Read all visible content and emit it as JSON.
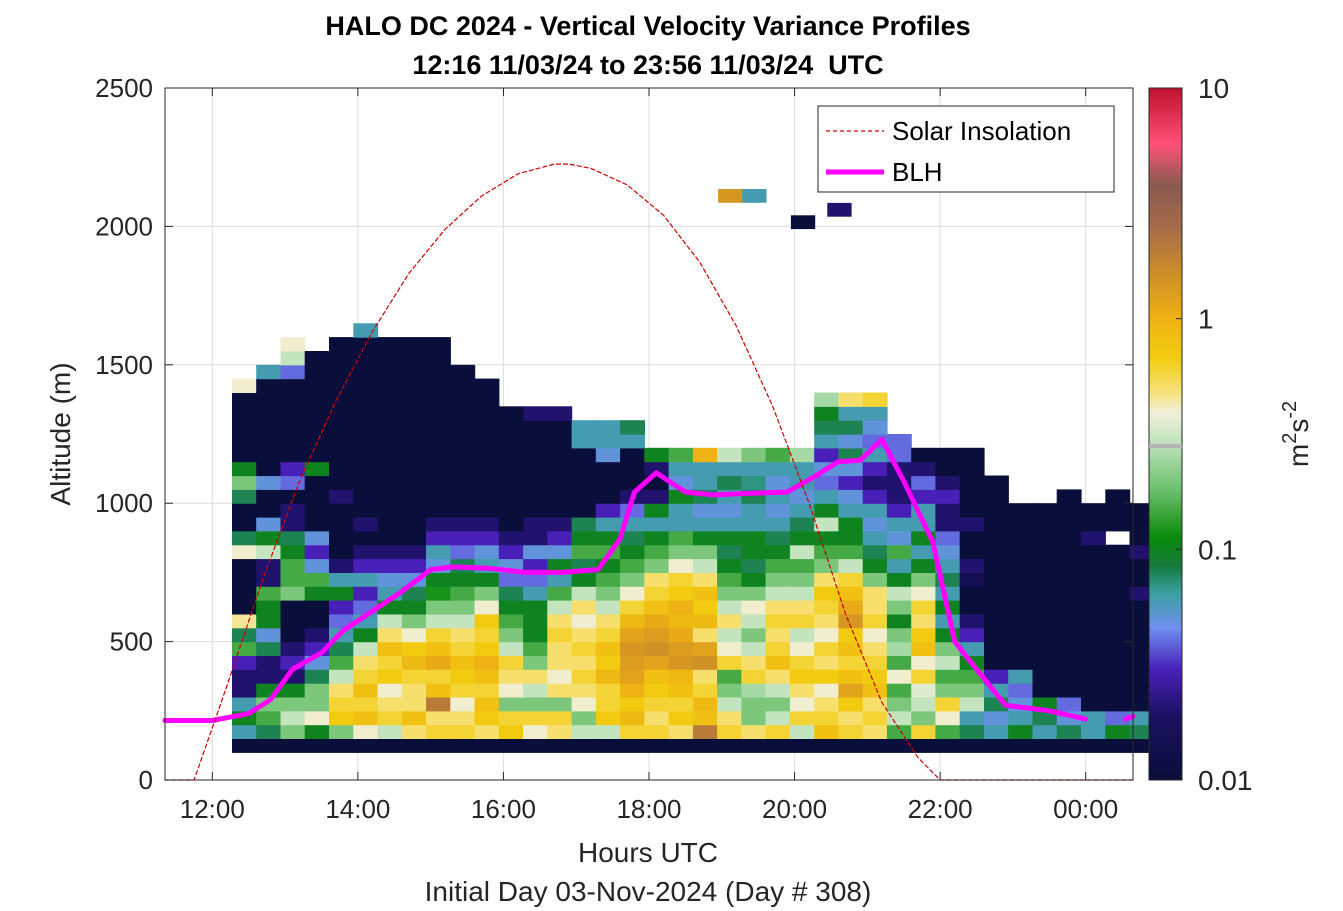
{
  "chart_data": {
    "type": "heatmap",
    "title": "HALO DC 2024 - Vertical Velocity Variance Profiles",
    "subtitle": "12:16 11/03/24 to 23:56 11/03/24  UTC",
    "xlabel": "Hours UTC",
    "xlabel2": "Initial Day 03-Nov-2024 (Day # 308)",
    "ylabel": "Altitude (m)",
    "xlim": [
      11.35,
      24.65
    ],
    "ylim": [
      0,
      2500
    ],
    "x_ticks": [
      12,
      14,
      16,
      18,
      20,
      22,
      24
    ],
    "x_tick_labels": [
      "12:00",
      "14:00",
      "16:00",
      "18:00",
      "20:00",
      "22:00",
      "00:00"
    ],
    "y_ticks": [
      0,
      500,
      1000,
      1500,
      2000,
      2500
    ],
    "y_tick_labels": [
      "0",
      "500",
      "1000",
      "1500",
      "2000",
      "2500"
    ],
    "grid": true,
    "colorbar": {
      "label": "m2s-2",
      "label_base": "m",
      "label_sup1": "2",
      "label_mid": "s",
      "label_sup2": "-2",
      "scale": "log",
      "range": [
        0.01,
        10
      ],
      "ticks": [
        0.01,
        0.1,
        1,
        10
      ],
      "tick_labels": [
        "0.01",
        "0.1",
        "1",
        "10"
      ]
    },
    "legend": {
      "position": "top-right",
      "entries": [
        {
          "name": "Solar Insolation",
          "color": "#cc0000",
          "style": "dashed"
        },
        {
          "name": "BLH",
          "color": "#ff00ff",
          "style": "solid"
        }
      ]
    },
    "heatmap": {
      "time_start": 12.27,
      "time_bin_hours": 0.3333,
      "alt_start_m": 100,
      "alt_bin_m": 50,
      "units": "m2 s-2",
      "columns": [
        [
          0.01,
          0.06,
          0.1,
          0.06,
          0.02,
          0.02,
          0.03,
          0.15,
          0.08,
          0.45,
          0.01,
          0.01,
          0.01,
          0.01,
          0.4,
          0.08,
          0.01,
          0.01,
          0.08,
          0.2,
          0.1,
          0.01,
          0.005,
          0.01,
          0.005,
          0.005,
          0.4
        ],
        [
          0.01,
          0.08,
          0.15,
          0.2,
          0.1,
          0.02,
          0.02,
          0.08,
          0.05,
          0.1,
          0.1,
          0.15,
          0.02,
          0.02,
          0.3,
          0.1,
          0.05,
          0.01,
          0.005,
          0.05,
          0.01,
          0.01,
          0.005,
          0.005,
          0.005,
          0.005,
          0.005,
          0.06
        ],
        [
          0.01,
          0.2,
          0.3,
          0.2,
          0.1,
          0.02,
          0.03,
          0.02,
          0.01,
          0.01,
          0.01,
          0.2,
          0.15,
          0.15,
          0.1,
          0.08,
          0.02,
          0.02,
          0.01,
          0.04,
          0.03,
          0.01,
          0.005,
          0.005,
          0.005,
          0.005,
          0.005,
          0.04,
          0.3,
          0.4
        ],
        [
          0.01,
          0.1,
          0.4,
          0.2,
          0.2,
          0.08,
          0.05,
          0.03,
          0.02,
          0.01,
          0.01,
          0.1,
          0.15,
          0.05,
          0.03,
          0.05,
          0.01,
          0.01,
          0.01,
          0.01,
          0.1,
          0.01,
          0.01,
          0.01,
          0.01,
          0.01,
          0.01,
          0.01,
          0.01
        ],
        [
          0.01,
          0.2,
          0.7,
          0.6,
          0.5,
          0.3,
          0.15,
          0.08,
          0.06,
          0.04,
          0.03,
          0.1,
          0.06,
          0.02,
          0.01,
          0.01,
          0.01,
          0.01,
          0.02,
          0.01,
          0.01,
          0.01,
          0.01,
          0.01,
          0.01,
          0.01,
          0.01,
          0.01,
          0.01,
          0.01
        ],
        [
          0.01,
          0.4,
          0.8,
          0.6,
          0.8,
          0.6,
          0.5,
          0.3,
          0.1,
          0.06,
          0.04,
          0.03,
          0.06,
          0.03,
          0.02,
          0.01,
          0.02,
          0.01,
          0.01,
          0.01,
          0.01,
          0.01,
          0.01,
          0.01,
          0.01,
          0.01,
          0.01,
          0.01,
          0.01,
          0.01,
          0.06
        ],
        [
          0.01,
          0.3,
          0.6,
          0.5,
          0.4,
          0.7,
          0.6,
          0.8,
          0.5,
          0.3,
          0.1,
          0.06,
          0.05,
          0.03,
          0.02,
          0.01,
          0.01,
          0.01,
          0.01,
          0.01,
          0.01,
          0.01,
          0.01,
          0.01,
          0.01,
          0.01,
          0.01,
          0.01,
          0.01,
          0.01
        ],
        [
          0.01,
          0.5,
          0.8,
          0.5,
          0.5,
          0.6,
          0.9,
          0.7,
          0.4,
          0.2,
          0.1,
          0.08,
          0.05,
          0.03,
          0.02,
          0.01,
          0.01,
          0.01,
          0.01,
          0.01,
          0.01,
          0.01,
          0.01,
          0.01,
          0.01,
          0.01,
          0.01,
          0.01,
          0.01,
          0.01
        ],
        [
          0.01,
          0.6,
          0.5,
          2,
          0.8,
          0.6,
          1.1,
          0.8,
          0.6,
          0.3,
          0.2,
          0.12,
          0.1,
          0.05,
          0.06,
          0.03,
          0.02,
          0.01,
          0.01,
          0.01,
          0.01,
          0.01,
          0.01,
          0.01,
          0.01,
          0.01,
          0.01,
          0.01,
          0.01,
          0.01
        ],
        [
          0.01,
          0.6,
          0.5,
          0.4,
          0.6,
          0.7,
          0.8,
          0.6,
          0.5,
          0.3,
          0.2,
          0.15,
          0.1,
          0.08,
          0.04,
          0.03,
          0.02,
          0.01,
          0.01,
          0.01,
          0.01,
          0.01,
          0.01,
          0.01,
          0.01,
          0.01,
          0.01,
          0.01
        ],
        [
          0.01,
          0.5,
          0.7,
          0.8,
          0.6,
          0.8,
          1,
          0.7,
          0.6,
          0.7,
          0.4,
          0.2,
          0.1,
          0.06,
          0.05,
          0.03,
          0.02,
          0.01,
          0.01,
          0.01,
          0.01,
          0.01,
          0.01,
          0.01,
          0.01,
          0.01,
          0.01
        ],
        [
          0.01,
          0.7,
          0.6,
          0.2,
          0.4,
          0.5,
          0.6,
          0.3,
          0.2,
          0.15,
          0.1,
          0.08,
          0.04,
          0.05,
          0.03,
          0.02,
          0.01,
          0.01,
          0.01,
          0.01,
          0.01,
          0.01,
          0.01,
          0.01,
          0.01
        ],
        [
          0.01,
          0.4,
          0.6,
          0.2,
          0.3,
          0.5,
          0.2,
          0.15,
          0.1,
          0.1,
          0.1,
          0.06,
          0.04,
          0.03,
          0.05,
          0.02,
          0.02,
          0.01,
          0.01,
          0.01,
          0.01,
          0.01,
          0.01,
          0.01,
          0.02
        ],
        [
          0.01,
          0.5,
          0.6,
          0.2,
          0.5,
          0.4,
          0.5,
          0.5,
          0.6,
          0.5,
          0.3,
          0.15,
          0.06,
          0.1,
          0.05,
          0.03,
          0.02,
          0.01,
          0.01,
          0.01,
          0.01,
          0.01,
          0.01,
          0.01,
          0.02
        ],
        [
          0.01,
          0.3,
          0.2,
          0.4,
          0.5,
          0.6,
          0.5,
          0.6,
          0.5,
          0.4,
          0.5,
          0.3,
          0.1,
          0.08,
          0.15,
          0.1,
          0.08,
          0.01,
          0.01,
          0.01,
          0.01,
          0.01,
          0.06,
          0.06
        ],
        [
          0.01,
          0.3,
          0.7,
          0.6,
          0.6,
          0.9,
          0.7,
          0.8,
          0.6,
          0.5,
          0.3,
          0.2,
          0.15,
          0.1,
          0.15,
          0.1,
          0.06,
          0.03,
          0.01,
          0.01,
          0.01,
          0.05,
          0.06,
          0.06
        ],
        [
          0.01,
          0.6,
          0.9,
          0.7,
          1,
          1.2,
          1.3,
          1.4,
          1.2,
          0.9,
          0.6,
          0.4,
          0.2,
          0.15,
          0.1,
          0.08,
          0.06,
          0.04,
          0.02,
          0.01,
          0.01,
          0.01,
          0.06,
          0.08
        ],
        [
          0.01,
          0.6,
          0.5,
          0.6,
          0.7,
          0.8,
          1.2,
          1.5,
          1.3,
          1.1,
          0.8,
          0.6,
          0.5,
          0.2,
          0.15,
          0.1,
          0.06,
          0.1,
          0.02,
          0.01,
          0.02,
          0.1
        ],
        [
          0.01,
          0.5,
          0.7,
          0.6,
          0.8,
          0.9,
          1.4,
          1.3,
          1.1,
          0.9,
          1,
          0.7,
          0.6,
          0.4,
          0.2,
          0.15,
          0.06,
          0.06,
          0.1,
          0.05,
          0.06,
          0.15
        ],
        [
          0.01,
          2,
          0.8,
          0.9,
          0.6,
          0.5,
          1.5,
          1.2,
          0.5,
          0.9,
          0.7,
          0.8,
          0.5,
          0.3,
          0.2,
          0.1,
          0.06,
          0.05,
          0.08,
          0.06,
          0.06,
          1
        ],
        [
          0.01,
          0.6,
          0.5,
          0.3,
          0.2,
          0.15,
          0.6,
          0.4,
          0.3,
          0.5,
          0.3,
          0.2,
          0.15,
          0.1,
          0.08,
          0.1,
          0.06,
          0.05,
          0.06,
          0.08,
          0.06,
          0.3
        ],
        [
          0.01,
          0.5,
          0.2,
          0.2,
          0.25,
          0.6,
          0.5,
          0.3,
          0.2,
          0.3,
          0.4,
          0.2,
          0.1,
          0.08,
          0.1,
          0.1,
          0.06,
          0.06,
          0.08,
          0.07,
          0.06,
          0.2
        ],
        [
          0.01,
          0.6,
          0.3,
          0.2,
          0.3,
          0.5,
          0.8,
          0.6,
          0.5,
          0.6,
          0.5,
          0.3,
          0.2,
          0.15,
          0.1,
          0.08,
          0.06,
          0.05,
          0.06,
          0.05,
          0.06,
          0.15
        ],
        [
          0.01,
          0.3,
          0.6,
          0.4,
          0.5,
          0.7,
          0.6,
          0.4,
          0.3,
          0.6,
          0.5,
          0.3,
          0.2,
          0.15,
          0.3,
          0.1,
          0.08,
          0.06,
          0.05,
          0.06,
          0.06,
          0.25
        ],
        [
          0.01,
          0.8,
          0.6,
          0.5,
          0.4,
          0.7,
          0.5,
          0.6,
          0.4,
          0.5,
          0.6,
          0.7,
          0.5,
          0.2,
          0.15,
          0.1,
          0.3,
          0.1,
          0.06,
          0.04,
          0.05,
          0.03,
          0.06,
          0.08,
          0.1,
          0.25
        ],
        [
          0.01,
          0.6,
          0.5,
          0.7,
          1.2,
          0.8,
          0.6,
          0.8,
          0.7,
          1.4,
          1.1,
          0.8,
          0.6,
          0.3,
          0.15,
          0.1,
          0.1,
          0.06,
          0.05,
          0.03,
          0.05,
          0.08,
          0.05,
          0.08,
          0.06,
          0.5
        ],
        [
          0.01,
          0.5,
          0.6,
          0.5,
          0.8,
          0.7,
          0.6,
          0.5,
          0.4,
          0.6,
          0.5,
          0.5,
          0.2,
          0.1,
          0.08,
          0.06,
          0.05,
          0.06,
          0.03,
          0.02,
          0.03,
          0.06,
          0.04,
          0.05,
          0.06,
          0.6
        ],
        [
          0.01,
          0.15,
          0.3,
          0.2,
          0.15,
          0.4,
          0.15,
          0.25,
          0.2,
          0.1,
          0.2,
          0.3,
          0.1,
          0.06,
          0.15,
          0.05,
          0.06,
          0.03,
          0.02,
          0.02,
          0.02,
          0.04,
          0.04
        ],
        [
          0.01,
          0.6,
          0.2,
          0.3,
          0.35,
          0.6,
          0.4,
          0.8,
          0.7,
          0.5,
          0.6,
          0.4,
          0.2,
          0.1,
          0.06,
          0.1,
          0.06,
          0.06,
          0.03,
          0.04,
          0.02,
          0.01
        ],
        [
          0.01,
          0.15,
          0.4,
          0.6,
          0.2,
          0.15,
          0.3,
          0.2,
          0.1,
          0.06,
          0.1,
          0.06,
          0.08,
          0.06,
          0.05,
          0.04,
          0.02,
          0.02,
          0.03,
          0.02,
          0.01,
          0.01
        ],
        [
          0.01,
          0.08,
          0.06,
          0.3,
          0.2,
          0.15,
          0.1,
          0.06,
          0.03,
          0.02,
          0.01,
          0.01,
          0.015,
          0.02,
          0.01,
          0.01,
          0.02,
          0.01,
          0.01,
          0.01,
          0.01,
          0.01
        ],
        [
          0.01,
          0.06,
          0.05,
          0.08,
          0.06,
          0.03,
          0.01,
          0.01,
          0.01,
          0.01,
          0.01,
          0.01,
          0.01,
          0.01,
          0.01,
          0.01,
          0.01,
          0.01,
          0.01,
          0.01
        ],
        [
          0.01,
          0.1,
          0.06,
          0.05,
          0.04,
          0.06,
          0.01,
          0.01,
          0.01,
          0.01,
          0.01,
          0.01,
          0.01,
          0.01,
          0.01,
          0.01,
          0.01,
          0.01
        ],
        [
          0.01,
          0.06,
          0.08,
          0.1,
          0.01,
          0.01,
          0.01,
          0.01,
          0.01,
          0.01,
          0.01,
          0.01,
          0.01,
          0.01,
          0.01,
          0.01,
          0.01,
          0.01
        ],
        [
          0.01,
          0.08,
          0.05,
          0.04,
          0.01,
          0.01,
          0.01,
          0.01,
          0.01,
          0.01,
          0.01,
          0.01,
          0.01,
          0.01,
          0.01,
          0.01,
          0.01,
          0.01,
          0.01
        ],
        [
          0.01,
          0.06,
          0.06,
          0.01,
          0.01,
          0.01,
          0.01,
          0.01,
          0.01,
          0.01,
          0.01,
          0.01,
          0.01,
          0.01,
          0.01,
          0.02,
          0.01,
          0.01
        ],
        [
          0.01,
          0.1,
          0.04,
          0.01,
          0.01,
          0.01,
          0.01,
          0.01,
          0.01,
          0.01,
          0.01,
          0.01,
          0.01,
          0.01,
          0.01,
          null,
          0.01,
          0.01,
          0.01
        ],
        [
          0.01,
          0.08,
          0.06,
          0.01,
          0.01,
          0.01,
          0.01,
          0.01,
          0.01,
          0.01,
          0.01,
          0.02,
          0.01,
          0.01,
          0.02,
          0.01,
          0.01,
          0.01
        ]
      ],
      "isolated_cells": [
        {
          "time": 18.95,
          "alt_m": 2085,
          "value": 1.4
        },
        {
          "time": 19.28,
          "alt_m": 2085,
          "value": 0.06
        },
        {
          "time": 19.95,
          "alt_m": 1990,
          "value": 0.01
        },
        {
          "time": 20.45,
          "alt_m": 2035,
          "value": 0.02
        }
      ]
    },
    "series": [
      {
        "name": "BLH",
        "x": [
          11.35,
          12.0,
          12.5,
          12.8,
          13.1,
          13.5,
          13.8,
          14.2,
          14.6,
          15.0,
          15.3,
          15.8,
          16.3,
          16.8,
          17.3,
          17.6,
          17.8,
          18.1,
          18.5,
          18.9,
          19.3,
          19.9,
          20.3,
          20.6,
          20.9,
          21.2,
          21.5,
          21.9,
          22.2,
          22.5,
          22.9,
          23.5,
          24.0
        ],
        "y": [
          215,
          215,
          240,
          290,
          400,
          460,
          540,
          610,
          680,
          760,
          770,
          765,
          750,
          750,
          760,
          870,
          1040,
          1110,
          1040,
          1030,
          1035,
          1040,
          1100,
          1150,
          1155,
          1230,
          1080,
          860,
          500,
          400,
          270,
          250,
          220
        ]
      },
      {
        "name": "BLH",
        "x": [
          24.55,
          24.65
        ],
        "y": [
          220,
          230
        ]
      },
      {
        "name": "Solar Insolation",
        "x": [
          11.35,
          11.75,
          12.2,
          12.7,
          13.2,
          13.7,
          14.2,
          14.7,
          15.2,
          15.7,
          16.2,
          16.7,
          16.9,
          17.2,
          17.7,
          18.2,
          18.7,
          19.2,
          19.7,
          20.2,
          20.7,
          21.2,
          21.7,
          22.0,
          22.3,
          24.65
        ],
        "y": [
          0,
          0,
          340,
          730,
          1080,
          1370,
          1620,
          1830,
          1990,
          2110,
          2190,
          2225,
          2225,
          2210,
          2150,
          2040,
          1870,
          1640,
          1350,
          1000,
          600,
          280,
          80,
          0,
          0,
          0
        ]
      }
    ]
  }
}
